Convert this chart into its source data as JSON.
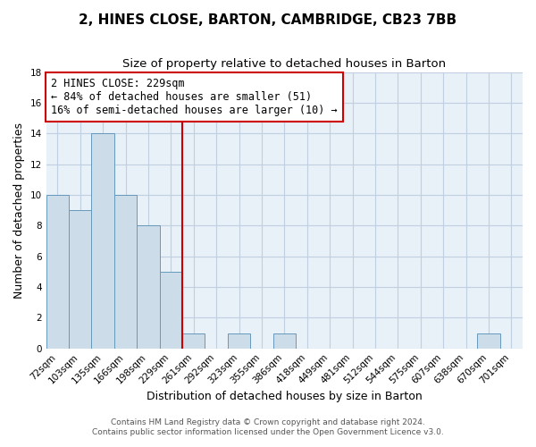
{
  "title": "2, HINES CLOSE, BARTON, CAMBRIDGE, CB23 7BB",
  "subtitle": "Size of property relative to detached houses in Barton",
  "xlabel": "Distribution of detached houses by size in Barton",
  "ylabel": "Number of detached properties",
  "bar_labels": [
    "72sqm",
    "103sqm",
    "135sqm",
    "166sqm",
    "198sqm",
    "229sqm",
    "261sqm",
    "292sqm",
    "323sqm",
    "355sqm",
    "386sqm",
    "418sqm",
    "449sqm",
    "481sqm",
    "512sqm",
    "544sqm",
    "575sqm",
    "607sqm",
    "638sqm",
    "670sqm",
    "701sqm"
  ],
  "bar_values": [
    10,
    9,
    14,
    10,
    8,
    5,
    1,
    0,
    1,
    0,
    1,
    0,
    0,
    0,
    0,
    0,
    0,
    0,
    0,
    1,
    0
  ],
  "bar_color": "#ccdce8",
  "bar_edge_color": "#6699bb",
  "reference_line_index": 5,
  "reference_line_color": "#cc0000",
  "annotation_line1": "2 HINES CLOSE: 229sqm",
  "annotation_line2": "← 84% of detached houses are smaller (51)",
  "annotation_line3": "16% of semi-detached houses are larger (10) →",
  "annotation_box_color": "white",
  "annotation_box_edge_color": "#cc0000",
  "ylim": [
    0,
    18
  ],
  "yticks": [
    0,
    2,
    4,
    6,
    8,
    10,
    12,
    14,
    16,
    18
  ],
  "footer_line1": "Contains HM Land Registry data © Crown copyright and database right 2024.",
  "footer_line2": "Contains public sector information licensed under the Open Government Licence v3.0.",
  "background_color": "#ffffff",
  "plot_bg_color": "#e8f0f8",
  "grid_color": "#c0d0e0",
  "title_fontsize": 11,
  "subtitle_fontsize": 9.5,
  "axis_label_fontsize": 9,
  "tick_fontsize": 7.5,
  "annotation_fontsize": 8.5,
  "footer_fontsize": 6.5
}
